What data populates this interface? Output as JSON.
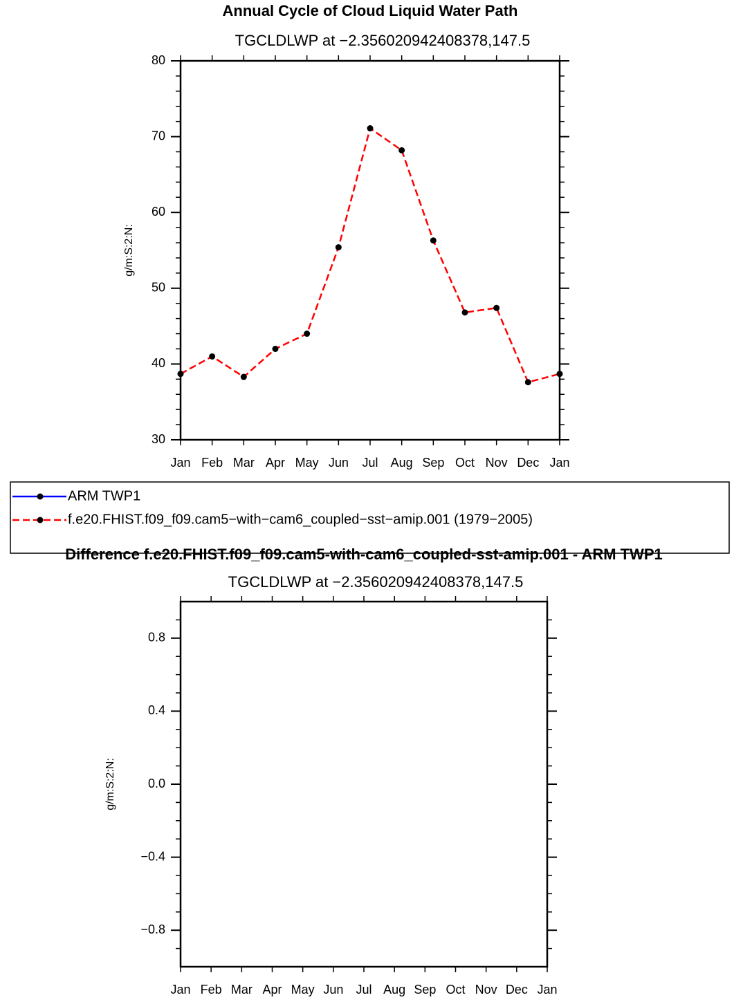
{
  "chart_data": [
    {
      "type": "line",
      "title": "Annual Cycle of Cloud Liquid Water Path",
      "subtitle": "TGCLDLWP at −2.356020942408378,147.5",
      "ylabel": "g/m:S:2:N:",
      "categories": [
        "Jan",
        "Feb",
        "Mar",
        "Apr",
        "May",
        "Jun",
        "Jul",
        "Aug",
        "Sep",
        "Oct",
        "Nov",
        "Dec",
        "Jan"
      ],
      "series": [
        {
          "name": "ARM TWP1",
          "color": "#0000ff",
          "dash": "solid",
          "values": [
            null,
            null,
            null,
            null,
            null,
            null,
            null,
            null,
            null,
            null,
            null,
            null,
            null
          ]
        },
        {
          "name": "f.e20.FHIST.f09_f09.cam5−with−cam6_coupled−sst−amip.001 (1979−2005)",
          "color": "#ff0000",
          "dash": "dashed",
          "values": [
            38.7,
            41.0,
            38.3,
            42.0,
            44.0,
            55.4,
            71.1,
            68.2,
            56.3,
            46.8,
            47.4,
            37.6,
            38.7
          ]
        }
      ],
      "ylim": [
        30,
        80
      ],
      "yticks": [
        30,
        40,
        50,
        60,
        70,
        80
      ],
      "yminorticks": [
        32,
        34,
        36,
        38,
        42,
        44,
        46,
        48,
        52,
        54,
        56,
        58,
        62,
        64,
        66,
        68,
        72,
        74,
        76,
        78
      ]
    },
    {
      "type": "line",
      "title": "Difference f.e20.FHIST.f09_f09.cam5-with-cam6_coupled-sst-amip.001 - ARM TWP1",
      "subtitle": "TGCLDLWP at −2.356020942408378,147.5",
      "ylabel": "g/m:S:2:N:",
      "categories": [
        "Jan",
        "Feb",
        "Mar",
        "Apr",
        "May",
        "Jun",
        "Jul",
        "Aug",
        "Sep",
        "Oct",
        "Nov",
        "Dec",
        "Jan"
      ],
      "series": [],
      "ylim": [
        -1,
        1
      ],
      "yticks": [
        {
          "value": -0.8,
          "label": "−0.8"
        },
        {
          "value": -0.4,
          "label": "−0.4"
        },
        {
          "value": 0,
          "label": "0.0"
        },
        0.4,
        0.8
      ],
      "yminorticks": [
        -0.9,
        -0.7,
        -0.6,
        -0.5,
        -0.3,
        -0.2,
        -0.1,
        0.1,
        0.2,
        0.3,
        0.5,
        0.6,
        0.7,
        0.9
      ]
    }
  ]
}
